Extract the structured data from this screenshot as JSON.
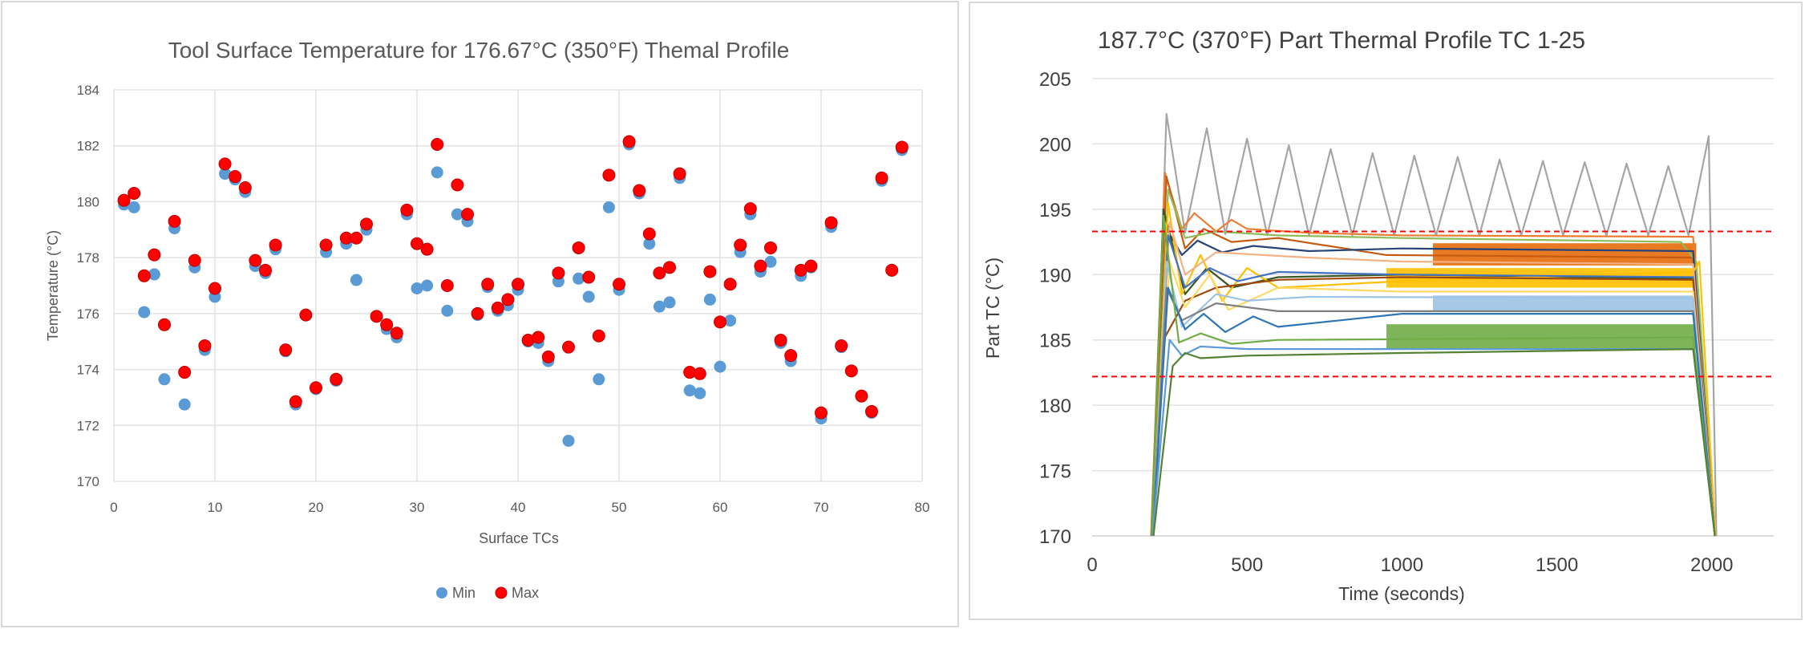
{
  "chart_data": [
    {
      "type": "scatter",
      "title": "Tool Surface Temperature for 176.67°C (350°F) Themal Profile",
      "xlabel": "Surface TCs",
      "ylabel": "Temperature (°C)",
      "xlim": [
        0,
        80
      ],
      "ylim": [
        170,
        184
      ],
      "xticks": [
        0,
        10,
        20,
        30,
        40,
        50,
        60,
        70,
        80
      ],
      "yticks": [
        170,
        172,
        174,
        176,
        178,
        180,
        182,
        184
      ],
      "grid": true,
      "legend": "bottom",
      "x": [
        1,
        2,
        3,
        4,
        5,
        6,
        7,
        8,
        9,
        10,
        11,
        12,
        13,
        14,
        15,
        16,
        17,
        18,
        19,
        20,
        21,
        22,
        23,
        24,
        25,
        26,
        27,
        28,
        29,
        30,
        31,
        32,
        33,
        34,
        35,
        36,
        37,
        38,
        39,
        40,
        41,
        42,
        43,
        44,
        45,
        46,
        47,
        48,
        49,
        50,
        51,
        52,
        53,
        54,
        55,
        56,
        57,
        58,
        59,
        60,
        61,
        62,
        63,
        64,
        65,
        66,
        67,
        68,
        69,
        70,
        71,
        72,
        73,
        74,
        75,
        76,
        77,
        78
      ],
      "series": [
        {
          "name": "Min",
          "color": "#5B9BD5",
          "values": [
            179.9,
            179.8,
            176.05,
            177.4,
            173.65,
            179.05,
            172.75,
            177.65,
            174.7,
            176.6,
            181.0,
            180.8,
            180.35,
            177.7,
            177.45,
            178.3,
            174.65,
            172.75,
            175.95,
            173.3,
            178.2,
            173.6,
            178.5,
            177.2,
            179.0,
            175.9,
            175.45,
            175.15,
            179.55,
            176.9,
            177.0,
            181.05,
            176.1,
            179.55,
            179.3,
            175.95,
            176.95,
            176.1,
            176.3,
            176.85,
            175.0,
            174.95,
            174.3,
            177.15,
            171.45,
            177.25,
            176.6,
            173.65,
            179.8,
            176.85,
            182.05,
            180.3,
            178.5,
            176.25,
            176.4,
            180.85,
            173.25,
            173.15,
            176.5,
            174.1,
            175.75,
            178.2,
            179.55,
            177.5,
            177.85,
            174.95,
            174.3,
            177.35,
            177.65,
            172.25,
            179.1,
            174.8,
            173.95,
            173.05,
            172.45,
            180.75,
            177.55,
            181.85
          ]
        },
        {
          "name": "Max",
          "color": "#FF0000",
          "values": [
            180.05,
            180.3,
            177.35,
            178.1,
            175.6,
            179.3,
            173.9,
            177.9,
            174.85,
            176.9,
            181.35,
            180.9,
            180.5,
            177.9,
            177.55,
            178.45,
            174.7,
            172.85,
            175.95,
            173.35,
            178.45,
            173.65,
            178.7,
            178.7,
            179.2,
            175.9,
            175.6,
            175.3,
            179.7,
            178.5,
            178.3,
            182.05,
            177.0,
            180.6,
            179.55,
            176.0,
            177.05,
            176.2,
            176.5,
            177.05,
            175.05,
            175.15,
            174.45,
            177.45,
            174.8,
            178.35,
            177.3,
            175.2,
            180.95,
            177.05,
            182.15,
            180.4,
            178.85,
            177.45,
            177.65,
            181.0,
            173.9,
            173.85,
            177.5,
            175.7,
            177.05,
            178.45,
            179.75,
            177.7,
            178.35,
            175.05,
            174.5,
            177.55,
            177.7,
            172.45,
            179.25,
            174.85,
            173.95,
            173.05,
            172.5,
            180.85,
            177.55,
            181.95
          ]
        }
      ]
    },
    {
      "type": "line",
      "title": "187.7°C (370°F) Part Thermal Profile TC 1-25",
      "xlabel": "Time (seconds)",
      "ylabel": "Part TC (°C)",
      "xlim": [
        0,
        2200
      ],
      "ylim": [
        170,
        205
      ],
      "xticks": [
        0,
        500,
        1000,
        1500,
        2000
      ],
      "yticks": [
        170,
        175,
        180,
        185,
        190,
        195,
        200,
        205
      ],
      "grid": "horizontal",
      "limit_lines": [
        {
          "y": 193.3,
          "color": "#FF0000",
          "style": "dashed"
        },
        {
          "y": 182.2,
          "color": "#FF0000",
          "style": "dashed"
        }
      ],
      "series": [
        {
          "color": "#A5A5A5",
          "points": [
            [
              195,
              170
            ],
            [
              240,
              202.3
            ],
            [
              300,
              193.2
            ],
            [
              370,
              201.2
            ],
            [
              430,
              193.1
            ],
            [
              500,
              200.4
            ],
            [
              565,
              193
            ],
            [
              635,
              199.9
            ],
            [
              700,
              193
            ],
            [
              770,
              199.6
            ],
            [
              840,
              193
            ],
            [
              905,
              199.3
            ],
            [
              975,
              193
            ],
            [
              1040,
              199.1
            ],
            [
              1110,
              193
            ],
            [
              1180,
              199.0
            ],
            [
              1250,
              193
            ],
            [
              1315,
              198.8
            ],
            [
              1385,
              193
            ],
            [
              1455,
              198.7
            ],
            [
              1520,
              193
            ],
            [
              1590,
              198.6
            ],
            [
              1660,
              193
            ],
            [
              1725,
              198.5
            ],
            [
              1795,
              193
            ],
            [
              1860,
              198.3
            ],
            [
              1925,
              193
            ],
            [
              1990,
              200.6
            ],
            [
              2015,
              170
            ]
          ]
        },
        {
          "color": "#ED7D31",
          "points": [
            [
              190,
              170
            ],
            [
              235,
              197.8
            ],
            [
              290,
              193.5
            ],
            [
              330,
              194.7
            ],
            [
              400,
              193.3
            ],
            [
              450,
              194.2
            ],
            [
              500,
              193.5
            ],
            [
              700,
              193.2
            ],
            [
              1000,
              193.0
            ],
            [
              1940,
              192.9
            ],
            [
              2010,
              170
            ]
          ]
        },
        {
          "color": "#C55A11",
          "points": [
            [
              192,
              170
            ],
            [
              240,
              197.5
            ],
            [
              300,
              192
            ],
            [
              360,
              193.5
            ],
            [
              450,
              192.5
            ],
            [
              600,
              192.8
            ],
            [
              950,
              191.5
            ],
            [
              1940,
              191.3
            ],
            [
              2010,
              170
            ]
          ]
        },
        {
          "color": "#8FBC5A",
          "points": [
            [
              195,
              170
            ],
            [
              245,
              196.5
            ],
            [
              300,
              192.8
            ],
            [
              400,
              193.3
            ],
            [
              600,
              193.0
            ],
            [
              1000,
              192.8
            ],
            [
              1900,
              192.5
            ],
            [
              1950,
              191
            ],
            [
              2010,
              170
            ]
          ]
        },
        {
          "color": "#264478",
          "points": [
            [
              195,
              170
            ],
            [
              240,
              193.5
            ],
            [
              290,
              191.5
            ],
            [
              340,
              192.6
            ],
            [
              420,
              191.7
            ],
            [
              520,
              192.2
            ],
            [
              700,
              191.8
            ],
            [
              1000,
              192
            ],
            [
              1940,
              191.8
            ],
            [
              2010,
              170
            ]
          ]
        },
        {
          "color": "#375623",
          "points": [
            [
              192,
              170
            ],
            [
              230,
              195
            ],
            [
              300,
              188.5
            ],
            [
              370,
              190.5
            ],
            [
              450,
              189
            ],
            [
              600,
              189.8
            ],
            [
              1000,
              190
            ],
            [
              1940,
              189.7
            ],
            [
              2010,
              170
            ]
          ]
        },
        {
          "color": "#FFC000",
          "points": [
            [
              195,
              170
            ],
            [
              245,
              195.5
            ],
            [
              290,
              188.5
            ],
            [
              350,
              191.5
            ],
            [
              420,
              188
            ],
            [
              500,
              190.5
            ],
            [
              600,
              189
            ],
            [
              1000,
              189.5
            ],
            [
              1940,
              190.2
            ],
            [
              1960,
              191
            ],
            [
              2012,
              170
            ]
          ]
        },
        {
          "color": "#F4B183",
          "points": [
            [
              195,
              170
            ],
            [
              250,
              194
            ],
            [
              300,
              190
            ],
            [
              400,
              191.7
            ],
            [
              700,
              191.3
            ],
            [
              1000,
              191
            ],
            [
              1940,
              190.8
            ],
            [
              2010,
              170
            ]
          ]
        },
        {
          "color": "#4472C4",
          "points": [
            [
              195,
              170
            ],
            [
              245,
              193
            ],
            [
              300,
              189
            ],
            [
              380,
              190.5
            ],
            [
              470,
              189.5
            ],
            [
              600,
              190.2
            ],
            [
              1000,
              190
            ],
            [
              1940,
              189.8
            ],
            [
              2010,
              170
            ]
          ]
        },
        {
          "color": "#9E480E",
          "points": [
            [
              198,
              170
            ],
            [
              230,
              185
            ],
            [
              300,
              188
            ],
            [
              400,
              189
            ],
            [
              600,
              189.6
            ],
            [
              1000,
              189.8
            ],
            [
              1940,
              189.6
            ],
            [
              2010,
              170
            ]
          ]
        },
        {
          "color": "#FFD966",
          "points": [
            [
              196,
              170
            ],
            [
              250,
              191
            ],
            [
              300,
              187.5
            ],
            [
              380,
              190
            ],
            [
              440,
              187.3
            ],
            [
              600,
              189
            ],
            [
              1000,
              188.7
            ],
            [
              1940,
              188.7
            ],
            [
              2010,
              170
            ]
          ]
        },
        {
          "color": "#9DC3E6",
          "points": [
            [
              195,
              170
            ],
            [
              240,
              191
            ],
            [
              290,
              186
            ],
            [
              400,
              188.5
            ],
            [
              500,
              188
            ],
            [
              700,
              188.3
            ],
            [
              1940,
              188.2
            ],
            [
              2010,
              170
            ]
          ]
        },
        {
          "color": "#7F7F7F",
          "points": [
            [
              195,
              170
            ],
            [
              240,
              189
            ],
            [
              290,
              186.5
            ],
            [
              400,
              187.8
            ],
            [
              600,
              187.2
            ],
            [
              1940,
              187.2
            ],
            [
              2010,
              170
            ]
          ]
        },
        {
          "color": "#2E75B6",
          "points": [
            [
              196,
              170
            ],
            [
              245,
              189
            ],
            [
              300,
              185.8
            ],
            [
              360,
              187
            ],
            [
              430,
              185.6
            ],
            [
              520,
              186.8
            ],
            [
              600,
              186
            ],
            [
              800,
              186.5
            ],
            [
              1000,
              187
            ],
            [
              1940,
              187
            ],
            [
              2010,
              170
            ]
          ]
        },
        {
          "color": "#70AD47",
          "points": [
            [
              192,
              170
            ],
            [
              230,
              194.5
            ],
            [
              280,
              184.8
            ],
            [
              350,
              185.5
            ],
            [
              450,
              184.7
            ],
            [
              600,
              185
            ],
            [
              1940,
              185.2
            ],
            [
              2010,
              170
            ]
          ]
        },
        {
          "color": "#5B9BD5",
          "points": [
            [
              195,
              170
            ],
            [
              250,
              185
            ],
            [
              290,
              183.8
            ],
            [
              350,
              184.5
            ],
            [
              500,
              184.3
            ],
            [
              1940,
              184.3
            ],
            [
              2010,
              170
            ]
          ]
        },
        {
          "color": "#548235",
          "points": [
            [
              198,
              170
            ],
            [
              260,
              183
            ],
            [
              300,
              184
            ],
            [
              350,
              183.6
            ],
            [
              500,
              183.8
            ],
            [
              1000,
              184
            ],
            [
              1940,
              184.3
            ],
            [
              2010,
              170
            ]
          ]
        }
      ],
      "bands": [
        {
          "color": "#E46C0A",
          "t": [
            1100,
            1950
          ],
          "range": [
            190.7,
            192.4
          ]
        },
        {
          "color": "#FFC000",
          "t": [
            950,
            1950
          ],
          "range": [
            189.0,
            190.5
          ]
        },
        {
          "color": "#9DC3E6",
          "t": [
            1100,
            1950
          ],
          "range": [
            187.2,
            188.4
          ]
        },
        {
          "color": "#70AD47",
          "t": [
            950,
            1950
          ],
          "range": [
            184.3,
            186.2
          ]
        }
      ]
    }
  ]
}
